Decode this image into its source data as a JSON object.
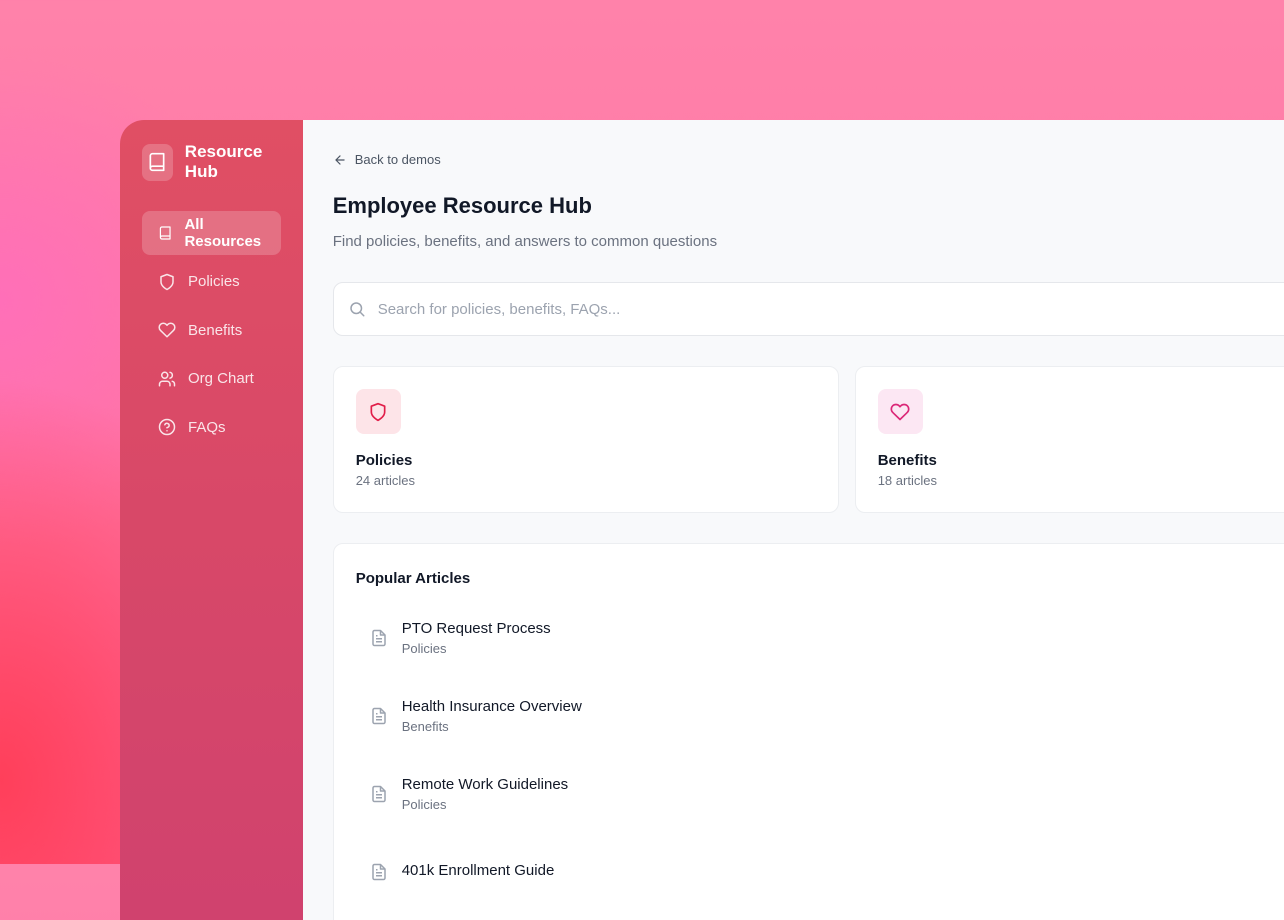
{
  "sidebar": {
    "brand": "Resource Hub",
    "items": [
      {
        "label": "All Resources",
        "icon": "book-icon",
        "active": true
      },
      {
        "label": "Policies",
        "icon": "shield-icon"
      },
      {
        "label": "Benefits",
        "icon": "heart-icon"
      },
      {
        "label": "Org Chart",
        "icon": "users-icon"
      },
      {
        "label": "FAQs",
        "icon": "help-circle-icon"
      }
    ]
  },
  "header": {
    "back": "Back to demos",
    "title": "Employee Resource Hub",
    "subtitle": "Find policies, benefits, and answers to common questions"
  },
  "search": {
    "placeholder": "Search for policies, benefits, FAQs..."
  },
  "cards": [
    {
      "title": "Policies",
      "count": "24 articles",
      "icon": "shield-icon",
      "color": "#e11d48",
      "bg": "#fde4e8"
    },
    {
      "title": "Benefits",
      "count": "18 articles",
      "icon": "heart-icon",
      "color": "#db2777",
      "bg": "#fce7f3"
    }
  ],
  "popular": {
    "title": "Popular Articles",
    "articles": [
      {
        "title": "PTO Request Process",
        "category": "Policies"
      },
      {
        "title": "Health Insurance Overview",
        "category": "Benefits"
      },
      {
        "title": "Remote Work Guidelines",
        "category": "Policies"
      },
      {
        "title": "401k Enrollment Guide",
        "category": ""
      }
    ]
  }
}
